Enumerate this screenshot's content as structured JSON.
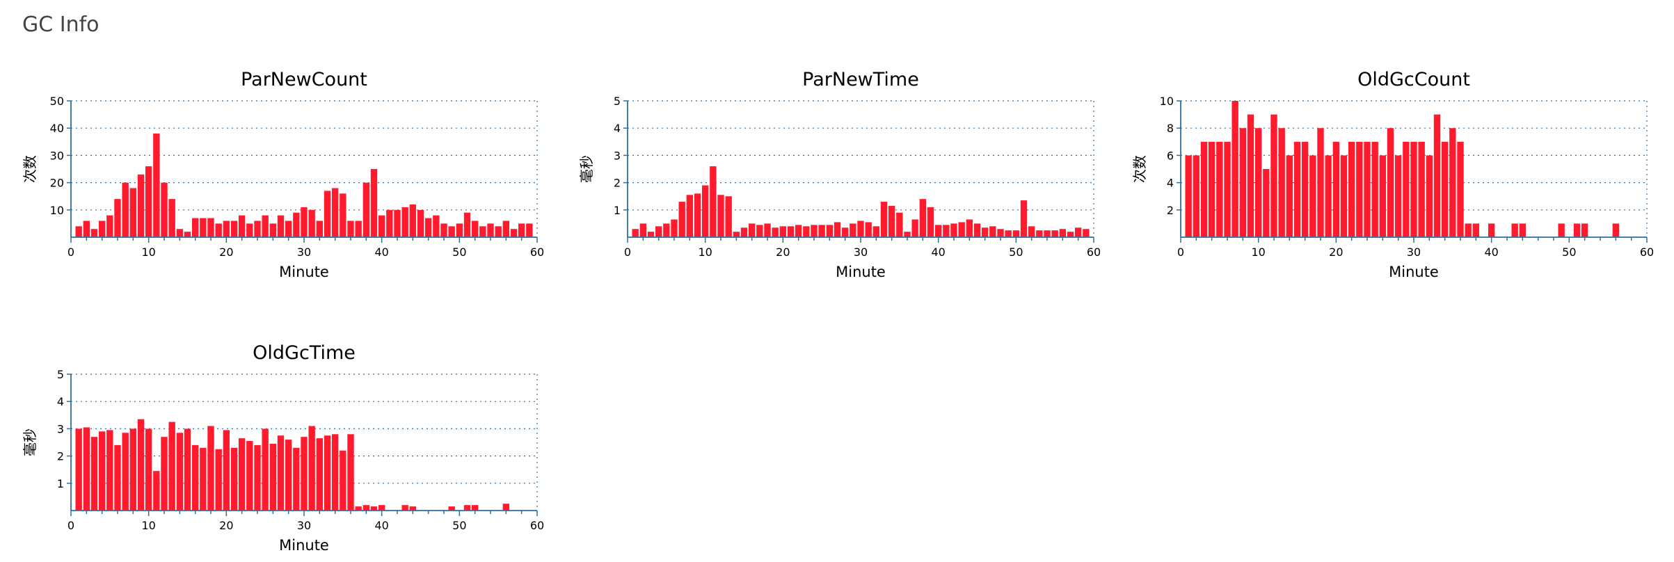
{
  "page": {
    "title": "GC Info"
  },
  "colors": {
    "bar": "#ff1b2d",
    "axis": "#2c6ea0",
    "grid": "#2c6ea0"
  },
  "chart_data": [
    {
      "type": "bar",
      "title": "ParNewCount",
      "xlabel": "Minute",
      "ylabel": "次数",
      "xlim": [
        0,
        60
      ],
      "ylim": [
        0,
        50
      ],
      "xticks": [
        0,
        10,
        20,
        30,
        40,
        50,
        60
      ],
      "yticks": [
        10,
        20,
        30,
        40,
        50
      ],
      "grid": "dotted",
      "x": [
        1,
        2,
        3,
        4,
        5,
        6,
        7,
        8,
        9,
        10,
        11,
        12,
        13,
        14,
        15,
        16,
        17,
        18,
        19,
        20,
        21,
        22,
        23,
        24,
        25,
        26,
        27,
        28,
        29,
        30,
        31,
        32,
        33,
        34,
        35,
        36,
        37,
        38,
        39,
        40,
        41,
        42,
        43,
        44,
        45,
        46,
        47,
        48,
        49,
        50,
        51,
        52,
        53,
        54,
        55,
        56,
        57,
        58,
        59
      ],
      "values": [
        4,
        6,
        3,
        6,
        8,
        14,
        20,
        18,
        23,
        26,
        38,
        20,
        14,
        3,
        2,
        7,
        7,
        7,
        5,
        6,
        6,
        8,
        5,
        6,
        8,
        5,
        8,
        6,
        9,
        11,
        10,
        6,
        17,
        18,
        16,
        6,
        6,
        20,
        25,
        8,
        10,
        10,
        11,
        12,
        10,
        7,
        8,
        5,
        4,
        5,
        9,
        6,
        4,
        5,
        4,
        6,
        3,
        5,
        5
      ]
    },
    {
      "type": "bar",
      "title": "ParNewTime",
      "xlabel": "Minute",
      "ylabel": "毫秒",
      "xlim": [
        0,
        60
      ],
      "ylim": [
        0,
        5
      ],
      "xticks": [
        0,
        10,
        20,
        30,
        40,
        50,
        60
      ],
      "yticks": [
        1,
        2,
        3,
        4,
        5
      ],
      "grid": "dotted",
      "x": [
        1,
        2,
        3,
        4,
        5,
        6,
        7,
        8,
        9,
        10,
        11,
        12,
        13,
        14,
        15,
        16,
        17,
        18,
        19,
        20,
        21,
        22,
        23,
        24,
        25,
        26,
        27,
        28,
        29,
        30,
        31,
        32,
        33,
        34,
        35,
        36,
        37,
        38,
        39,
        40,
        41,
        42,
        43,
        44,
        45,
        46,
        47,
        48,
        49,
        50,
        51,
        52,
        53,
        54,
        55,
        56,
        57,
        58,
        59
      ],
      "values": [
        0.3,
        0.5,
        0.2,
        0.4,
        0.5,
        0.65,
        1.3,
        1.55,
        1.6,
        1.9,
        2.6,
        1.55,
        1.5,
        0.2,
        0.35,
        0.5,
        0.45,
        0.5,
        0.35,
        0.4,
        0.4,
        0.45,
        0.4,
        0.45,
        0.45,
        0.45,
        0.55,
        0.35,
        0.5,
        0.6,
        0.55,
        0.4,
        1.3,
        1.15,
        0.9,
        0.2,
        0.65,
        1.4,
        1.1,
        0.45,
        0.45,
        0.5,
        0.55,
        0.65,
        0.5,
        0.35,
        0.4,
        0.3,
        0.25,
        0.25,
        1.35,
        0.4,
        0.25,
        0.25,
        0.25,
        0.3,
        0.2,
        0.35,
        0.3
      ]
    },
    {
      "type": "bar",
      "title": "OldGcCount",
      "xlabel": "Minute",
      "ylabel": "次数",
      "xlim": [
        0,
        60
      ],
      "ylim": [
        0,
        10
      ],
      "xticks": [
        0,
        10,
        20,
        30,
        40,
        50,
        60
      ],
      "yticks": [
        2,
        4,
        6,
        8,
        10
      ],
      "grid": "dotted",
      "x": [
        1,
        2,
        3,
        4,
        5,
        6,
        7,
        8,
        9,
        10,
        11,
        12,
        13,
        14,
        15,
        16,
        17,
        18,
        19,
        20,
        21,
        22,
        23,
        24,
        25,
        26,
        27,
        28,
        29,
        30,
        31,
        32,
        33,
        34,
        35,
        36,
        37,
        38,
        40,
        43,
        44,
        49,
        51,
        52,
        56
      ],
      "values": [
        6,
        6,
        7,
        7,
        7,
        7,
        10,
        8,
        9,
        8,
        5,
        9,
        8,
        6,
        7,
        7,
        6,
        8,
        6,
        7,
        6,
        7,
        7,
        7,
        7,
        6,
        8,
        6,
        7,
        7,
        7,
        6,
        9,
        7,
        8,
        7,
        1,
        1,
        1,
        1,
        1,
        1,
        1,
        1,
        1
      ]
    },
    {
      "type": "bar",
      "title": "OldGcTime",
      "xlabel": "Minute",
      "ylabel": "毫秒",
      "xlim": [
        0,
        60
      ],
      "ylim": [
        0,
        5
      ],
      "xticks": [
        0,
        10,
        20,
        30,
        40,
        50,
        60
      ],
      "yticks": [
        1,
        2,
        3,
        4,
        5
      ],
      "grid": "dotted",
      "x": [
        1,
        2,
        3,
        4,
        5,
        6,
        7,
        8,
        9,
        10,
        11,
        12,
        13,
        14,
        15,
        16,
        17,
        18,
        19,
        20,
        21,
        22,
        23,
        24,
        25,
        26,
        27,
        28,
        29,
        30,
        31,
        32,
        33,
        34,
        35,
        36,
        37,
        38,
        39,
        40,
        43,
        44,
        49,
        51,
        52,
        56
      ],
      "values": [
        3.0,
        3.05,
        2.7,
        2.9,
        2.95,
        2.4,
        2.85,
        3.0,
        3.35,
        3.0,
        1.45,
        2.7,
        3.25,
        2.85,
        3.0,
        2.4,
        2.3,
        3.1,
        2.25,
        2.95,
        2.3,
        2.65,
        2.55,
        2.4,
        3.0,
        2.45,
        2.75,
        2.6,
        2.3,
        2.7,
        3.1,
        2.65,
        2.75,
        2.8,
        2.2,
        2.8,
        0.15,
        0.2,
        0.15,
        0.2,
        0.2,
        0.15,
        0.15,
        0.2,
        0.2,
        0.25
      ]
    }
  ]
}
